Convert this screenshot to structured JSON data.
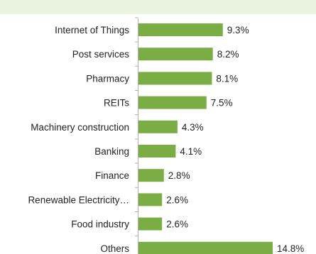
{
  "chart_data": {
    "type": "bar",
    "orientation": "horizontal",
    "categories": [
      "Internet of Things",
      "Post services",
      "Pharmacy",
      "REITs",
      "Machinery construction",
      "Banking",
      "Finance",
      "Renewable Electricity…",
      "Food industry",
      "Others"
    ],
    "values": [
      9.3,
      8.2,
      8.1,
      7.5,
      4.3,
      4.1,
      2.8,
      2.6,
      2.6,
      14.8
    ],
    "value_labels": [
      "9.3%",
      "8.2%",
      "8.1%",
      "7.5%",
      "4.3%",
      "4.1%",
      "2.8%",
      "2.6%",
      "2.6%",
      "14.8%"
    ],
    "unit": "%",
    "xlim": [
      0,
      14.8
    ],
    "bar_color": "#7aae45",
    "axis_color": "#b0b0b0",
    "grid": false,
    "legend": "none",
    "title": "",
    "xlabel": "",
    "ylabel": ""
  }
}
